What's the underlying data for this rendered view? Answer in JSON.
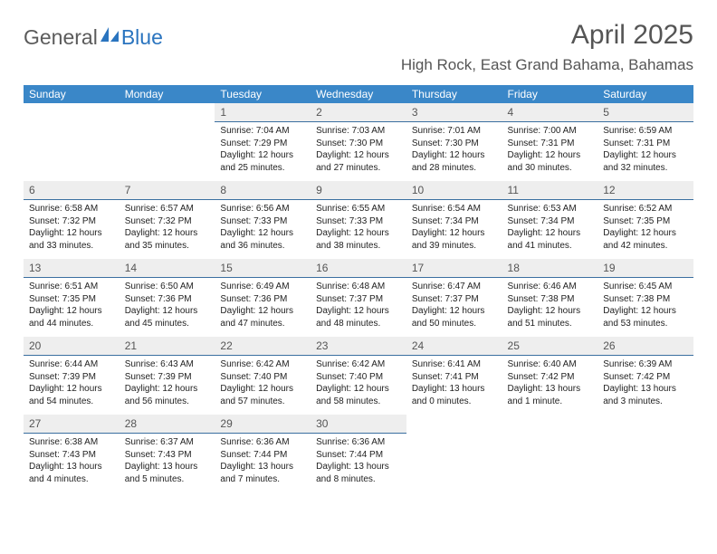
{
  "brand": {
    "part1": "General",
    "part2": "Blue"
  },
  "title": "April 2025",
  "location": "High Rock, East Grand Bahama, Bahamas",
  "colors": {
    "header_bg": "#3a87c8",
    "header_text": "#ffffff",
    "daynum_bg": "#eeeeee",
    "daynum_border": "#3a6fa0",
    "brand_gray": "#5b5b5b",
    "brand_blue": "#2a74bf"
  },
  "weekdays": [
    "Sunday",
    "Monday",
    "Tuesday",
    "Wednesday",
    "Thursday",
    "Friday",
    "Saturday"
  ],
  "weeks": [
    [
      {
        "empty": true
      },
      {
        "empty": true
      },
      {
        "day": "1",
        "sunrise": "Sunrise: 7:04 AM",
        "sunset": "Sunset: 7:29 PM",
        "daylight": "Daylight: 12 hours and 25 minutes."
      },
      {
        "day": "2",
        "sunrise": "Sunrise: 7:03 AM",
        "sunset": "Sunset: 7:30 PM",
        "daylight": "Daylight: 12 hours and 27 minutes."
      },
      {
        "day": "3",
        "sunrise": "Sunrise: 7:01 AM",
        "sunset": "Sunset: 7:30 PM",
        "daylight": "Daylight: 12 hours and 28 minutes."
      },
      {
        "day": "4",
        "sunrise": "Sunrise: 7:00 AM",
        "sunset": "Sunset: 7:31 PM",
        "daylight": "Daylight: 12 hours and 30 minutes."
      },
      {
        "day": "5",
        "sunrise": "Sunrise: 6:59 AM",
        "sunset": "Sunset: 7:31 PM",
        "daylight": "Daylight: 12 hours and 32 minutes."
      }
    ],
    [
      {
        "day": "6",
        "sunrise": "Sunrise: 6:58 AM",
        "sunset": "Sunset: 7:32 PM",
        "daylight": "Daylight: 12 hours and 33 minutes."
      },
      {
        "day": "7",
        "sunrise": "Sunrise: 6:57 AM",
        "sunset": "Sunset: 7:32 PM",
        "daylight": "Daylight: 12 hours and 35 minutes."
      },
      {
        "day": "8",
        "sunrise": "Sunrise: 6:56 AM",
        "sunset": "Sunset: 7:33 PM",
        "daylight": "Daylight: 12 hours and 36 minutes."
      },
      {
        "day": "9",
        "sunrise": "Sunrise: 6:55 AM",
        "sunset": "Sunset: 7:33 PM",
        "daylight": "Daylight: 12 hours and 38 minutes."
      },
      {
        "day": "10",
        "sunrise": "Sunrise: 6:54 AM",
        "sunset": "Sunset: 7:34 PM",
        "daylight": "Daylight: 12 hours and 39 minutes."
      },
      {
        "day": "11",
        "sunrise": "Sunrise: 6:53 AM",
        "sunset": "Sunset: 7:34 PM",
        "daylight": "Daylight: 12 hours and 41 minutes."
      },
      {
        "day": "12",
        "sunrise": "Sunrise: 6:52 AM",
        "sunset": "Sunset: 7:35 PM",
        "daylight": "Daylight: 12 hours and 42 minutes."
      }
    ],
    [
      {
        "day": "13",
        "sunrise": "Sunrise: 6:51 AM",
        "sunset": "Sunset: 7:35 PM",
        "daylight": "Daylight: 12 hours and 44 minutes."
      },
      {
        "day": "14",
        "sunrise": "Sunrise: 6:50 AM",
        "sunset": "Sunset: 7:36 PM",
        "daylight": "Daylight: 12 hours and 45 minutes."
      },
      {
        "day": "15",
        "sunrise": "Sunrise: 6:49 AM",
        "sunset": "Sunset: 7:36 PM",
        "daylight": "Daylight: 12 hours and 47 minutes."
      },
      {
        "day": "16",
        "sunrise": "Sunrise: 6:48 AM",
        "sunset": "Sunset: 7:37 PM",
        "daylight": "Daylight: 12 hours and 48 minutes."
      },
      {
        "day": "17",
        "sunrise": "Sunrise: 6:47 AM",
        "sunset": "Sunset: 7:37 PM",
        "daylight": "Daylight: 12 hours and 50 minutes."
      },
      {
        "day": "18",
        "sunrise": "Sunrise: 6:46 AM",
        "sunset": "Sunset: 7:38 PM",
        "daylight": "Daylight: 12 hours and 51 minutes."
      },
      {
        "day": "19",
        "sunrise": "Sunrise: 6:45 AM",
        "sunset": "Sunset: 7:38 PM",
        "daylight": "Daylight: 12 hours and 53 minutes."
      }
    ],
    [
      {
        "day": "20",
        "sunrise": "Sunrise: 6:44 AM",
        "sunset": "Sunset: 7:39 PM",
        "daylight": "Daylight: 12 hours and 54 minutes."
      },
      {
        "day": "21",
        "sunrise": "Sunrise: 6:43 AM",
        "sunset": "Sunset: 7:39 PM",
        "daylight": "Daylight: 12 hours and 56 minutes."
      },
      {
        "day": "22",
        "sunrise": "Sunrise: 6:42 AM",
        "sunset": "Sunset: 7:40 PM",
        "daylight": "Daylight: 12 hours and 57 minutes."
      },
      {
        "day": "23",
        "sunrise": "Sunrise: 6:42 AM",
        "sunset": "Sunset: 7:40 PM",
        "daylight": "Daylight: 12 hours and 58 minutes."
      },
      {
        "day": "24",
        "sunrise": "Sunrise: 6:41 AM",
        "sunset": "Sunset: 7:41 PM",
        "daylight": "Daylight: 13 hours and 0 minutes."
      },
      {
        "day": "25",
        "sunrise": "Sunrise: 6:40 AM",
        "sunset": "Sunset: 7:42 PM",
        "daylight": "Daylight: 13 hours and 1 minute."
      },
      {
        "day": "26",
        "sunrise": "Sunrise: 6:39 AM",
        "sunset": "Sunset: 7:42 PM",
        "daylight": "Daylight: 13 hours and 3 minutes."
      }
    ],
    [
      {
        "day": "27",
        "sunrise": "Sunrise: 6:38 AM",
        "sunset": "Sunset: 7:43 PM",
        "daylight": "Daylight: 13 hours and 4 minutes."
      },
      {
        "day": "28",
        "sunrise": "Sunrise: 6:37 AM",
        "sunset": "Sunset: 7:43 PM",
        "daylight": "Daylight: 13 hours and 5 minutes."
      },
      {
        "day": "29",
        "sunrise": "Sunrise: 6:36 AM",
        "sunset": "Sunset: 7:44 PM",
        "daylight": "Daylight: 13 hours and 7 minutes."
      },
      {
        "day": "30",
        "sunrise": "Sunrise: 6:36 AM",
        "sunset": "Sunset: 7:44 PM",
        "daylight": "Daylight: 13 hours and 8 minutes."
      },
      {
        "empty": true
      },
      {
        "empty": true
      },
      {
        "empty": true
      }
    ]
  ]
}
